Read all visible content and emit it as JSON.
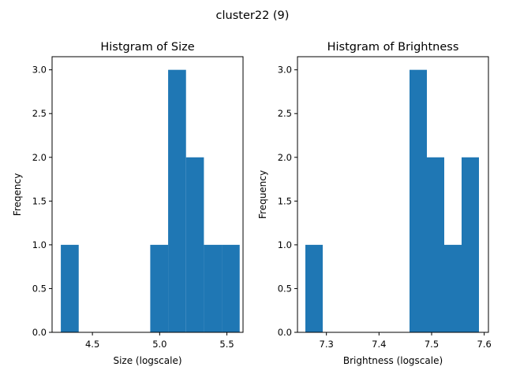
{
  "figure": {
    "suptitle": "cluster22 (9)",
    "bar_color": "#1f77b4"
  },
  "chart_data": [
    {
      "type": "bar",
      "title": "Histgram of Size",
      "xlabel": "Size (logscale)",
      "ylabel": "Freqency",
      "xlim": [
        4.2,
        5.62
      ],
      "ylim": [
        0,
        3.15
      ],
      "xticks": [
        "4.5",
        "5.0",
        "5.5"
      ],
      "yticks": [
        "0.0",
        "0.5",
        "1.0",
        "1.5",
        "2.0",
        "2.5",
        "3.0"
      ],
      "bin_edges": [
        4.265,
        4.398,
        4.531,
        4.664,
        4.797,
        4.93,
        5.063,
        5.196,
        5.329,
        5.462,
        5.595
      ],
      "values": [
        1,
        0,
        0,
        0,
        0,
        1,
        3,
        2,
        1,
        1
      ]
    },
    {
      "type": "bar",
      "title": "Histgram of Brightness",
      "xlabel": "Brightness (logscale)",
      "ylabel": "Frequency",
      "xlim": [
        7.245,
        7.608
      ],
      "ylim": [
        0,
        3.15
      ],
      "xticks": [
        "7.3",
        "7.4",
        "7.5",
        "7.6"
      ],
      "yticks": [
        "0.0",
        "0.5",
        "1.0",
        "1.5",
        "2.0",
        "2.5",
        "3.0"
      ],
      "bin_edges": [
        7.26,
        7.293,
        7.326,
        7.359,
        7.392,
        7.425,
        7.458,
        7.491,
        7.524,
        7.557,
        7.59
      ],
      "values": [
        1,
        0,
        0,
        0,
        0,
        0,
        3,
        2,
        1,
        2
      ]
    }
  ]
}
